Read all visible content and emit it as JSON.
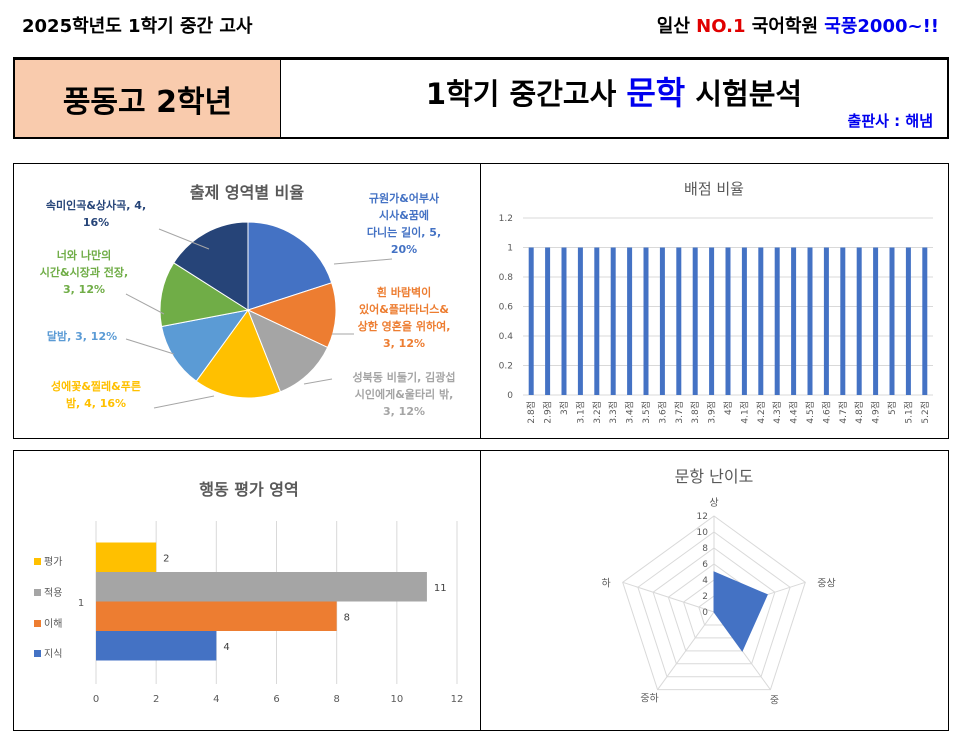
{
  "header": {
    "left_text": "2025학년도 1학기 중간 고사",
    "right_prefix": "일산 ",
    "right_highlight": "NO.1",
    "right_middle": " 국어학원 ",
    "right_brand": "국풍2000~!!",
    "school": "풍동고 2학년",
    "title_pre": "1학기 중간고사 ",
    "title_subject": "문학",
    "title_post": " 시험분석",
    "publisher": "출판사 : 해냄"
  },
  "colors": {
    "highlight_red": "#e00000",
    "brand_blue": "#0000ee",
    "school_bg": "#f9cbad"
  },
  "chart_data": [
    {
      "type": "pie",
      "title": "출제 영역별 비율",
      "slices": [
        {
          "label": "규원가&어부사시사&꿈에 다니는 길이, 5, 20%",
          "value": 5,
          "color": "#4472c4"
        },
        {
          "label": "흰 바람벽이 있어&플라타너스&상한 영혼을 위하여, 3, 12%",
          "value": 3,
          "color": "#ed7d31"
        },
        {
          "label": "성북동 비둘기, 김광섭 시인에게&울타리 밖, 3, 12%",
          "value": 3,
          "color": "#a5a5a5"
        },
        {
          "label": "성에꽃&찔레&푸른 밤, 4, 16%",
          "value": 4,
          "color": "#ffc000"
        },
        {
          "label": "달밤, 3, 12%",
          "value": 3,
          "color": "#5b9bd5"
        },
        {
          "label": "너와 나만의 시간&시장과 전장, 3, 12%",
          "value": 3,
          "color": "#70ad47"
        },
        {
          "label": "속미인곡&상사곡, 4, 16%",
          "value": 4,
          "color": "#264478"
        }
      ],
      "label_lines": {
        "s0": [
          "규원가&어부사",
          "시사&꿈에",
          "다니는 길이, 5,",
          "20%"
        ],
        "s1": [
          "흰 바람벽이",
          "있어&플라타너스&",
          "상한 영혼을 위하여,",
          "3, 12%"
        ],
        "s2": [
          "성북동 비둘기, 김광섭",
          "시인에게&울타리 밖,",
          "3, 12%"
        ],
        "s3": [
          "성에꽃&찔레&푸른",
          "밤, 4, 16%"
        ],
        "s4": [
          "달밤, 3, 12%"
        ],
        "s5": [
          "너와 나만의",
          "시간&시장과 전장,",
          "3, 12%"
        ],
        "s6": [
          "속미인곡&상사곡, 4,",
          "16%"
        ]
      }
    },
    {
      "type": "bar",
      "title": "배점 비율",
      "categories": [
        "2.8점",
        "2.9점",
        "3점",
        "3.1점",
        "3.2점",
        "3.3점",
        "3.4점",
        "3.5점",
        "3.6점",
        "3.7점",
        "3.8점",
        "3.9점",
        "4점",
        "4.1점",
        "4.2점",
        "4.3점",
        "4.4점",
        "4.5점",
        "4.6점",
        "4.7점",
        "4.8점",
        "4.9점",
        "5점",
        "5.1점",
        "5.2점"
      ],
      "values": [
        1,
        1,
        1,
        1,
        1,
        1,
        1,
        1,
        1,
        1,
        1,
        1,
        1,
        1,
        1,
        1,
        1,
        1,
        1,
        1,
        1,
        1,
        1,
        1,
        1
      ],
      "ylim": [
        0,
        1.2
      ],
      "yticks": [
        "0",
        "0.2",
        "0.4",
        "0.6",
        "0.8",
        "1",
        "1.2"
      ],
      "color": "#4472c4",
      "grid": true
    },
    {
      "type": "bar",
      "orientation": "horizontal",
      "title": "행동 평가 영역",
      "category_axis_label": "1",
      "series": [
        {
          "name": "지식",
          "value": 4,
          "color": "#4472c4"
        },
        {
          "name": "이해",
          "value": 8,
          "color": "#ed7d31"
        },
        {
          "name": "적용",
          "value": 11,
          "color": "#a5a5a5"
        },
        {
          "name": "평가",
          "value": 2,
          "color": "#ffc000"
        }
      ],
      "xlim": [
        0,
        12
      ],
      "xticks": [
        "0",
        "2",
        "4",
        "6",
        "8",
        "10",
        "12"
      ],
      "legend": "left"
    },
    {
      "type": "radar",
      "title": "문항 난이도",
      "axes": [
        "상",
        "중상",
        "중",
        "중하",
        "하"
      ],
      "values": [
        5,
        7,
        6,
        0,
        0
      ],
      "rlim": [
        0,
        12
      ],
      "rticks": [
        "0",
        "2",
        "4",
        "6",
        "8",
        "10",
        "12"
      ],
      "color": "#4472c4"
    }
  ]
}
